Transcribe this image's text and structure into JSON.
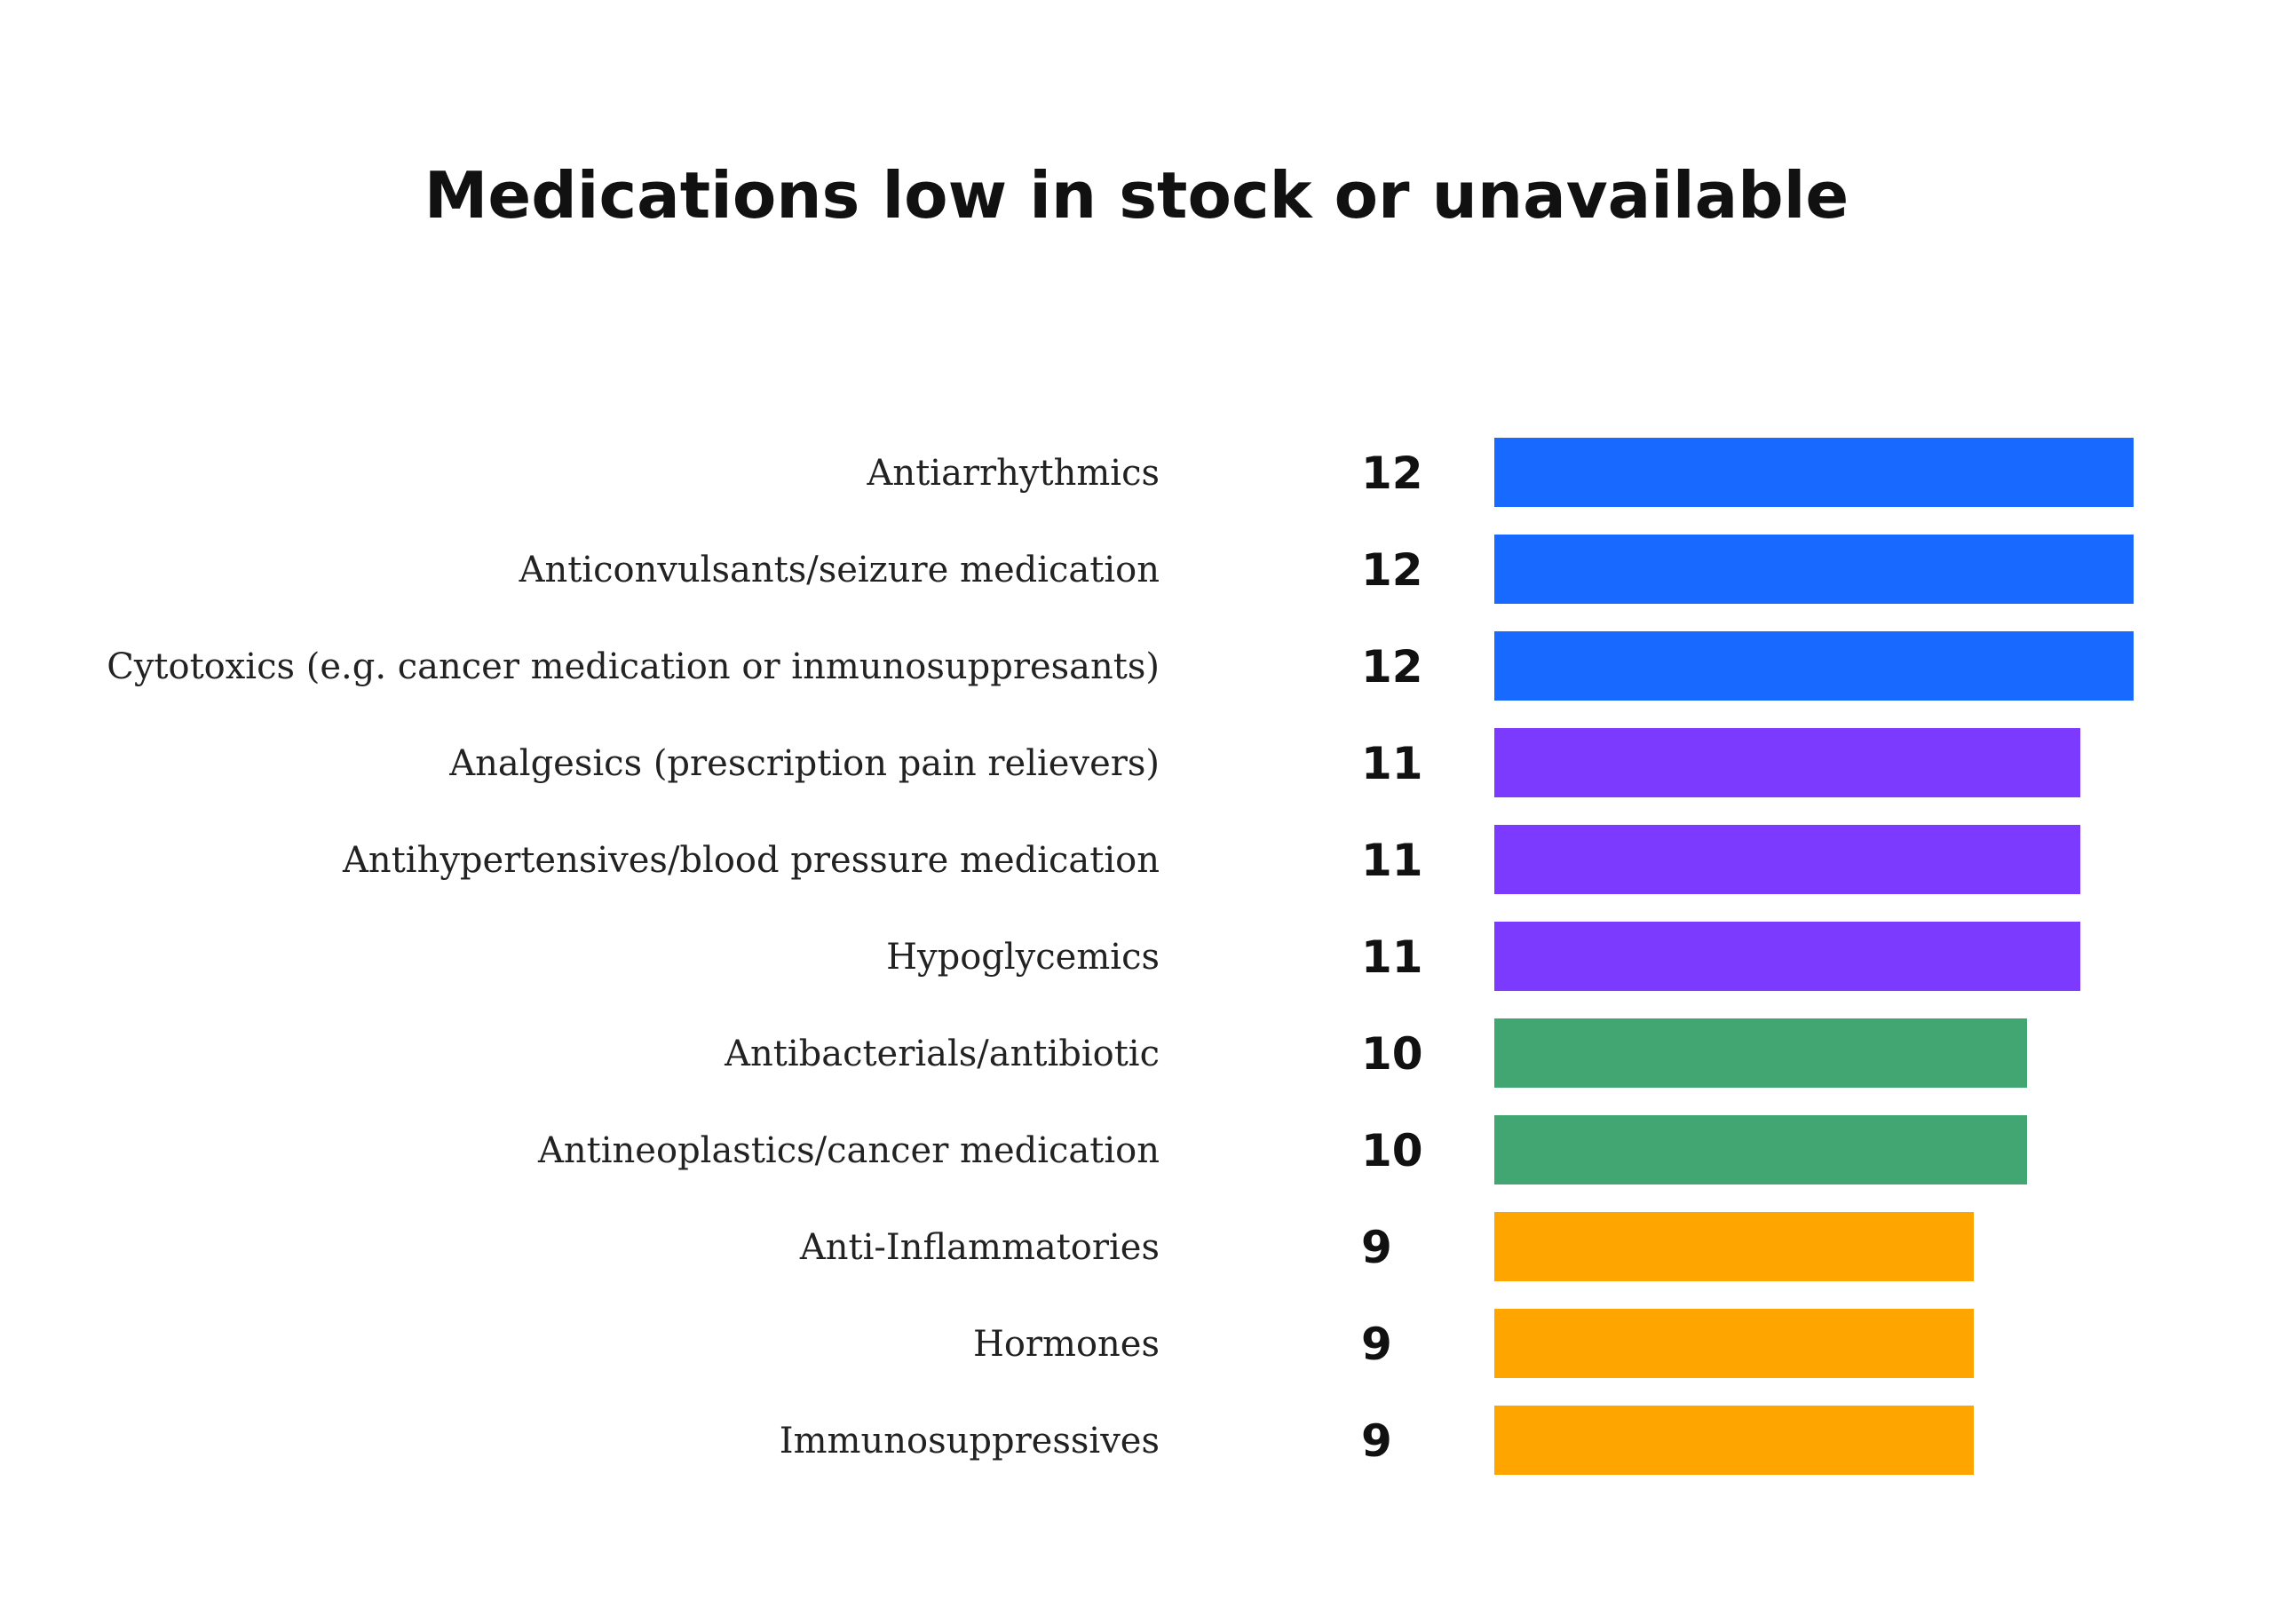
{
  "chart_data": {
    "type": "bar",
    "orientation": "horizontal",
    "title": "Medications low in stock or unavailable",
    "xlabel": "",
    "ylabel": "",
    "grid": false,
    "legend": "none",
    "categories": [
      "Antiarrhythmics",
      "Anticonvulsants/seizure medication",
      "Cytotoxics (e.g. cancer medication or inmunosuppresants)",
      "Analgesics (prescription pain relievers)",
      "Antihypertensives/blood pressure medication",
      "Hypoglycemics",
      "Antibacterials/antibiotic",
      "Antineoplastics/cancer medication",
      "Anti-Inflammatories",
      "Hormones",
      "Immunosuppressives"
    ],
    "values": [
      12,
      12,
      12,
      11,
      11,
      11,
      10,
      10,
      9,
      9,
      9
    ],
    "bar_colors": [
      "#1769ff",
      "#1769ff",
      "#1769ff",
      "#7c3aff",
      "#7c3aff",
      "#7c3aff",
      "#42a673",
      "#42a673",
      "#ffa500",
      "#ffa500",
      "#ffa500"
    ]
  }
}
